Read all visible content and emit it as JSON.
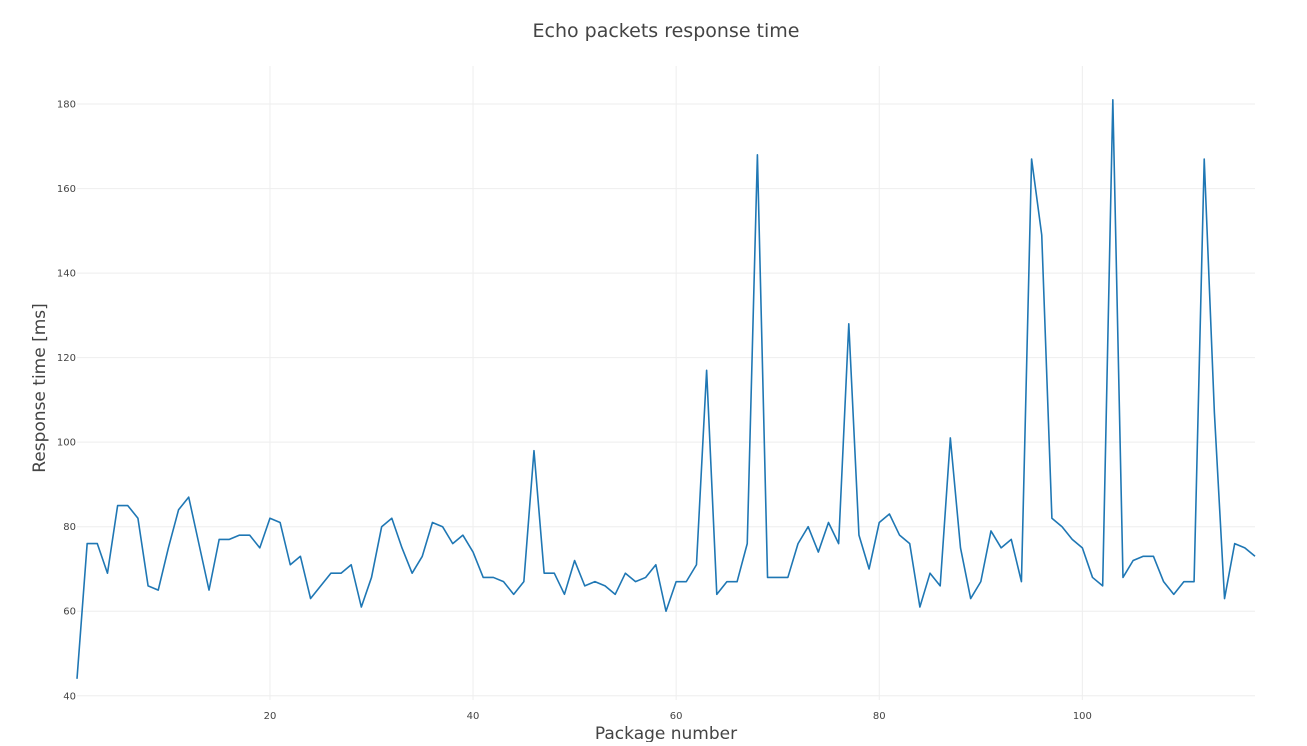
{
  "chart_data": {
    "type": "line",
    "title": "Echo packets response time",
    "xlabel": "Package number",
    "ylabel": "Response time [ms]",
    "xlim": [
      1,
      117
    ],
    "ylim": [
      39,
      189
    ],
    "x_ticks": [
      20,
      40,
      60,
      80,
      100
    ],
    "y_ticks": [
      40,
      60,
      80,
      100,
      120,
      140,
      160,
      180
    ],
    "grid": true,
    "legend": "none",
    "line_color": "#1f77b4",
    "series": [
      {
        "x": [
          1,
          2,
          3,
          4,
          5,
          6,
          7,
          8,
          9,
          10,
          11,
          12,
          13,
          14,
          15,
          16,
          17,
          18,
          19,
          20,
          21,
          22,
          23,
          24,
          25,
          26,
          27,
          28,
          29,
          30,
          31,
          32,
          33,
          34,
          35,
          36,
          37,
          38,
          39,
          40,
          41,
          42,
          43,
          44,
          45,
          46,
          47,
          48,
          49,
          50,
          51,
          52,
          53,
          54,
          55,
          56,
          57,
          58,
          59,
          60,
          61,
          62,
          63,
          64,
          65,
          66,
          67,
          68,
          69,
          70,
          71,
          72,
          73,
          74,
          75,
          76,
          77,
          78,
          79,
          80,
          81,
          82,
          83,
          84,
          85,
          86,
          87,
          88,
          89,
          90,
          91,
          92,
          93,
          94,
          95,
          96,
          97,
          98,
          99,
          100,
          101,
          102,
          103,
          104,
          105,
          106,
          107,
          108,
          109,
          110,
          111,
          112,
          113,
          114,
          115,
          116,
          117
        ],
        "values": [
          44,
          76,
          76,
          69,
          85,
          85,
          82,
          66,
          65,
          75,
          84,
          87,
          76,
          65,
          77,
          77,
          78,
          78,
          75,
          82,
          81,
          71,
          73,
          63,
          66,
          69,
          69,
          71,
          61,
          68,
          80,
          82,
          75,
          69,
          73,
          81,
          80,
          76,
          78,
          74,
          68,
          68,
          67,
          64,
          67,
          98,
          69,
          69,
          64,
          72,
          66,
          67,
          66,
          64,
          69,
          67,
          68,
          71,
          60,
          67,
          67,
          71,
          117,
          64,
          67,
          67,
          76,
          168,
          68,
          68,
          68,
          76,
          80,
          74,
          81,
          76,
          128,
          78,
          70,
          81,
          83,
          78,
          76,
          61,
          69,
          66,
          101,
          75,
          63,
          67,
          79,
          75,
          77,
          67,
          167,
          149,
          82,
          80,
          77,
          75,
          68,
          66,
          181,
          68,
          72,
          73,
          73,
          67,
          64,
          67,
          67,
          167,
          107,
          63,
          76,
          75,
          73
        ]
      }
    ]
  }
}
